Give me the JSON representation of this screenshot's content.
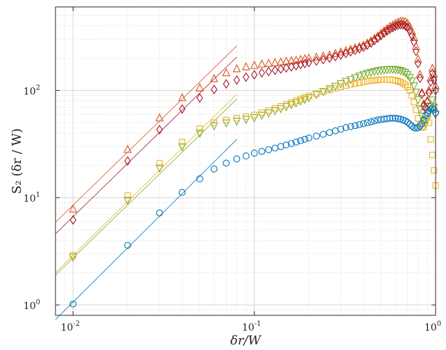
{
  "chart_data": {
    "type": "scatter",
    "xscale": "log",
    "yscale": "log",
    "xlim": [
      0.008,
      1.0
    ],
    "ylim": [
      0.8,
      600
    ],
    "grid": true,
    "xlabel": "δr/W",
    "ylabel": "S₂ (δr / W)",
    "xticks": [
      {
        "value": 0.01,
        "label": "10",
        "exp": "-2"
      },
      {
        "value": 0.1,
        "label": "10",
        "exp": "-1"
      },
      {
        "value": 1.0,
        "label": "10",
        "exp": "0"
      }
    ],
    "yticks": [
      {
        "value": 1,
        "label": "10",
        "exp": "0"
      },
      {
        "value": 10,
        "label": "10",
        "exp": "1"
      },
      {
        "value": 100,
        "label": "10",
        "exp": "2"
      }
    ],
    "series": [
      {
        "marker": "triangle-up",
        "color": "#D95319",
        "x": [
          0.01,
          0.02,
          0.03,
          0.04,
          0.05,
          0.06,
          0.07,
          0.08,
          0.09,
          0.1,
          0.11,
          0.12,
          0.13,
          0.14,
          0.15,
          0.16,
          0.17,
          0.18,
          0.19,
          0.2,
          0.22,
          0.24,
          0.26,
          0.28,
          0.3,
          0.32,
          0.34,
          0.36,
          0.38,
          0.4,
          0.42,
          0.44,
          0.46,
          0.48,
          0.5,
          0.52,
          0.54,
          0.56,
          0.58,
          0.6,
          0.62,
          0.64,
          0.66,
          0.68,
          0.7,
          0.72,
          0.74,
          0.76,
          0.78,
          0.8,
          0.82,
          0.84,
          0.86,
          0.88,
          0.9,
          0.92,
          0.94,
          0.96,
          0.98,
          1.0
        ],
        "y": [
          7.8,
          28,
          55,
          85,
          105,
          128,
          145,
          158,
          165,
          170,
          175,
          178,
          180,
          183,
          186,
          188,
          190,
          193,
          196,
          199,
          203,
          208,
          213,
          220,
          227,
          233,
          240,
          248,
          255,
          263,
          275,
          288,
          303,
          320,
          340,
          358,
          375,
          392,
          405,
          418,
          430,
          438,
          440,
          435,
          420,
          392,
          355,
          310,
          255,
          195,
          140,
          95,
          75,
          70,
          80,
          100,
          130,
          160,
          140,
          110
        ]
      },
      {
        "marker": "diamond",
        "color": "#A2142F",
        "x": [
          0.01,
          0.02,
          0.03,
          0.04,
          0.05,
          0.06,
          0.07,
          0.08,
          0.09,
          0.1,
          0.11,
          0.12,
          0.13,
          0.14,
          0.15,
          0.16,
          0.17,
          0.18,
          0.19,
          0.2,
          0.22,
          0.24,
          0.26,
          0.28,
          0.3,
          0.32,
          0.34,
          0.36,
          0.38,
          0.4,
          0.42,
          0.44,
          0.46,
          0.48,
          0.5,
          0.52,
          0.54,
          0.56,
          0.58,
          0.6,
          0.62,
          0.64,
          0.66,
          0.68,
          0.7,
          0.72,
          0.74,
          0.76,
          0.78,
          0.8,
          0.82,
          0.84,
          0.86,
          0.88,
          0.9,
          0.92,
          0.94,
          0.96,
          0.98,
          1.0
        ],
        "y": [
          6.2,
          22,
          43,
          67,
          85,
          102,
          115,
          125,
          133,
          140,
          146,
          150,
          154,
          158,
          162,
          166,
          170,
          174,
          178,
          182,
          188,
          194,
          200,
          207,
          214,
          221,
          229,
          237,
          245,
          253,
          264,
          277,
          292,
          308,
          325,
          342,
          358,
          372,
          385,
          396,
          405,
          410,
          408,
          400,
          385,
          360,
          325,
          283,
          232,
          178,
          130,
          92,
          72,
          68,
          78,
          95,
          120,
          145,
          125,
          100
        ]
      },
      {
        "marker": "triangle-down",
        "color": "#77AC30",
        "x": [
          0.01,
          0.02,
          0.03,
          0.04,
          0.05,
          0.06,
          0.07,
          0.08,
          0.09,
          0.1,
          0.11,
          0.12,
          0.13,
          0.14,
          0.15,
          0.16,
          0.17,
          0.18,
          0.19,
          0.2,
          0.22,
          0.24,
          0.26,
          0.28,
          0.3,
          0.32,
          0.34,
          0.36,
          0.38,
          0.4,
          0.42,
          0.44,
          0.46,
          0.48,
          0.5,
          0.52,
          0.54,
          0.56,
          0.58,
          0.6,
          0.62,
          0.64,
          0.66,
          0.68,
          0.7,
          0.72,
          0.74,
          0.76,
          0.78,
          0.8,
          0.82,
          0.84,
          0.86,
          0.88,
          0.9,
          0.92,
          0.94,
          0.96,
          0.98,
          1.0
        ],
        "y": [
          2.8,
          9.5,
          19,
          30,
          40,
          47,
          50,
          52,
          54,
          56,
          59,
          62,
          65,
          68,
          71,
          74,
          77,
          80,
          83,
          86,
          92,
          98,
          104,
          110,
          116,
          122,
          127,
          132,
          137,
          141,
          145,
          148,
          151,
          153,
          155,
          156,
          157,
          158,
          158,
          157,
          156,
          154,
          151,
          147,
          141,
          133,
          123,
          111,
          97,
          82,
          68,
          58,
          52,
          50,
          54,
          62,
          72,
          82,
          70,
          60
        ]
      },
      {
        "marker": "square",
        "color": "#EDB120",
        "x": [
          0.01,
          0.02,
          0.03,
          0.04,
          0.05,
          0.06,
          0.07,
          0.08,
          0.09,
          0.1,
          0.11,
          0.12,
          0.13,
          0.14,
          0.15,
          0.16,
          0.17,
          0.18,
          0.19,
          0.2,
          0.22,
          0.24,
          0.26,
          0.28,
          0.3,
          0.32,
          0.34,
          0.36,
          0.38,
          0.4,
          0.42,
          0.44,
          0.46,
          0.48,
          0.5,
          0.52,
          0.54,
          0.56,
          0.58,
          0.6,
          0.62,
          0.64,
          0.66,
          0.68,
          0.7,
          0.72,
          0.74,
          0.76,
          0.78,
          0.8,
          0.82,
          0.84,
          0.86,
          0.88,
          0.9,
          0.92,
          0.94,
          0.96,
          0.98,
          1.0
        ],
        "y": [
          2.9,
          10.5,
          21,
          33,
          44,
          50,
          53,
          55,
          57,
          59,
          62,
          65,
          68,
          71,
          74,
          77,
          80,
          83,
          86,
          89,
          93,
          97,
          101,
          105,
          108,
          111,
          114,
          116,
          118,
          120,
          122,
          123,
          124,
          125,
          126,
          126,
          126,
          126,
          125,
          124,
          122,
          120,
          117,
          113,
          108,
          100,
          90,
          78,
          66,
          55,
          48,
          45,
          46,
          52,
          60,
          50,
          35,
          25,
          18,
          13
        ]
      },
      {
        "marker": "circle",
        "color": "#0072BD",
        "x": [
          0.01,
          0.02,
          0.03,
          0.04,
          0.05,
          0.06,
          0.07,
          0.08,
          0.09,
          0.1,
          0.11,
          0.12,
          0.13,
          0.14,
          0.15,
          0.16,
          0.17,
          0.18,
          0.19,
          0.2,
          0.22,
          0.24,
          0.26,
          0.28,
          0.3,
          0.32,
          0.34,
          0.36,
          0.38,
          0.4,
          0.42,
          0.44,
          0.46,
          0.48,
          0.5,
          0.52,
          0.54,
          0.56,
          0.58,
          0.6,
          0.62,
          0.64,
          0.66,
          0.68,
          0.7,
          0.72,
          0.74,
          0.76,
          0.78,
          0.8,
          0.82,
          0.84,
          0.86,
          0.88,
          0.9,
          0.92,
          0.94,
          0.96,
          0.98,
          1.0
        ],
        "y": [
          1.02,
          3.6,
          7.2,
          11.2,
          15,
          18.5,
          21,
          23,
          24.5,
          26,
          27,
          28,
          29,
          30,
          31,
          32,
          33,
          34,
          35,
          36,
          37.5,
          39,
          40.5,
          42,
          43.5,
          45,
          46,
          47,
          48,
          49,
          50,
          51,
          52,
          53,
          53.5,
          54,
          54.5,
          55,
          55,
          55,
          54.5,
          54,
          53,
          52,
          50.5,
          48.5,
          46.5,
          45,
          44.5,
          45,
          46.5,
          49,
          53,
          58,
          62,
          65,
          67,
          68,
          66,
          62
        ]
      }
    ],
    "fit_lines": [
      {
        "color": "#D95319",
        "x": [
          0.008,
          0.08
        ],
        "y": [
          5.9,
          260
        ]
      },
      {
        "color": "#A2142F",
        "x": [
          0.008,
          0.08
        ],
        "y": [
          4.6,
          205
        ]
      },
      {
        "color": "#EDB120",
        "x": [
          0.008,
          0.08
        ],
        "y": [
          2.0,
          92
        ]
      },
      {
        "color": "#77AC30",
        "x": [
          0.008,
          0.08
        ],
        "y": [
          1.9,
          83
        ]
      },
      {
        "color": "#0072BD",
        "x": [
          0.008,
          0.08
        ],
        "y": [
          0.73,
          35
        ]
      }
    ]
  }
}
